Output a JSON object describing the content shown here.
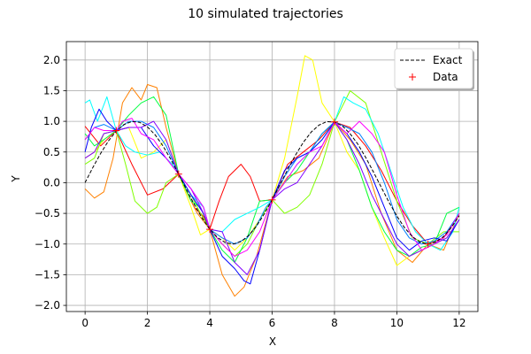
{
  "chart_data": {
    "type": "line",
    "title": "10 simulated trajectories",
    "xlabel": "X",
    "ylabel": "Y",
    "xlim": [
      -0.6,
      12.6
    ],
    "ylim": [
      -2.1,
      2.3
    ],
    "xticks": [
      0,
      2,
      4,
      6,
      8,
      10,
      12
    ],
    "yticks": [
      -2.0,
      -1.5,
      -1.0,
      -0.5,
      0.0,
      0.5,
      1.0,
      1.5,
      2.0
    ],
    "xtick_labels": [
      "0",
      "2",
      "4",
      "6",
      "8",
      "10",
      "12"
    ],
    "ytick_labels": [
      "−2.0",
      "−1.5",
      "−1.0",
      "−0.5",
      "0.0",
      "0.5",
      "1.0",
      "1.5",
      "2.0"
    ],
    "grid": true,
    "legend_position": "top-right",
    "legend": [
      {
        "label": "Exact",
        "style": "dashed-line",
        "color": "#000000"
      },
      {
        "label": "Data",
        "style": "plus-marker",
        "color": "#ff0000"
      }
    ],
    "exact": {
      "name": "Exact",
      "color": "#000000",
      "x": [
        0,
        0.25,
        0.5,
        0.75,
        1,
        1.25,
        1.5,
        1.75,
        2,
        2.25,
        2.5,
        2.75,
        3,
        3.25,
        3.5,
        3.75,
        4,
        4.25,
        4.5,
        4.75,
        5,
        5.25,
        5.5,
        5.75,
        6,
        6.25,
        6.5,
        6.75,
        7,
        7.25,
        7.5,
        7.75,
        8,
        8.25,
        8.5,
        8.75,
        9,
        9.25,
        9.5,
        9.75,
        10,
        10.25,
        10.5,
        10.75,
        11,
        11.25,
        11.5,
        11.75,
        12
      ],
      "y": [
        0,
        0.247,
        0.479,
        0.682,
        0.841,
        0.949,
        0.997,
        0.984,
        0.909,
        0.778,
        0.598,
        0.382,
        0.141,
        -0.108,
        -0.351,
        -0.572,
        -0.757,
        -0.895,
        -0.978,
        -0.999,
        -0.959,
        -0.859,
        -0.706,
        -0.508,
        -0.279,
        -0.033,
        0.215,
        0.45,
        0.657,
        0.823,
        0.938,
        0.994,
        0.989,
        0.925,
        0.798,
        0.626,
        0.412,
        0.174,
        -0.075,
        -0.32,
        -0.544,
        -0.736,
        -0.88,
        -0.97,
        -1.0,
        -0.967,
        -0.876,
        -0.728,
        -0.537
      ]
    },
    "data_points": {
      "name": "Data",
      "color": "#ff0000",
      "x": [
        1,
        3,
        4,
        6,
        8,
        11
      ],
      "y": [
        0.85,
        0.14,
        -0.76,
        -0.28,
        0.99,
        -1.0
      ]
    },
    "trajectories": [
      {
        "color": "#ff0000",
        "x": [
          0,
          0.5,
          1,
          1.5,
          2,
          2.5,
          3,
          3.5,
          3.8,
          4,
          4.3,
          4.6,
          5,
          5.3,
          5.6,
          6,
          6.5,
          7,
          7.5,
          8,
          8.5,
          9,
          9.5,
          10,
          10.5,
          11,
          11.5,
          12
        ],
        "y": [
          0.92,
          0.6,
          0.85,
          0.3,
          -0.2,
          -0.1,
          0.14,
          -0.4,
          -0.55,
          -0.76,
          -0.3,
          0.1,
          0.3,
          0.1,
          -0.3,
          -0.28,
          0.3,
          0.5,
          0.7,
          0.99,
          0.9,
          0.6,
          0.2,
          -0.3,
          -0.7,
          -1.0,
          -0.9,
          -0.5
        ]
      },
      {
        "color": "#ff8000",
        "x": [
          0,
          0.3,
          0.6,
          0.9,
          1.2,
          1.5,
          1.8,
          2,
          2.3,
          2.6,
          3,
          3.3,
          3.6,
          4,
          4.4,
          4.8,
          5.1,
          5.5,
          6,
          6.5,
          7,
          7.5,
          8,
          8.5,
          9,
          9.5,
          10,
          10.5,
          11,
          11.5,
          12
        ],
        "y": [
          -0.1,
          -0.25,
          -0.15,
          0.4,
          1.3,
          1.55,
          1.35,
          1.6,
          1.55,
          0.9,
          0.14,
          -0.2,
          -0.5,
          -0.76,
          -1.5,
          -1.85,
          -1.7,
          -1.2,
          -0.28,
          0.1,
          0.2,
          0.4,
          0.99,
          0.7,
          0.3,
          -0.5,
          -1.1,
          -1.3,
          -1.0,
          -1.1,
          -0.5
        ]
      },
      {
        "color": "#ffff00",
        "x": [
          0,
          0.3,
          0.6,
          1,
          1.4,
          1.8,
          2.2,
          2.6,
          3,
          3.4,
          3.7,
          4,
          4.4,
          4.8,
          5.2,
          5.6,
          6,
          6.4,
          6.8,
          7.05,
          7.3,
          7.6,
          8,
          8.4,
          8.8,
          9.2,
          9.6,
          10,
          10.4,
          10.8,
          11.2,
          11.6,
          12
        ],
        "y": [
          0.4,
          0.5,
          0.7,
          0.85,
          0.9,
          0.4,
          0.5,
          0.7,
          0.14,
          -0.4,
          -0.85,
          -0.76,
          -0.9,
          -1.1,
          -0.9,
          -0.6,
          -0.28,
          0.4,
          1.4,
          2.07,
          2.0,
          1.3,
          0.99,
          0.5,
          0.2,
          -0.4,
          -0.9,
          -1.35,
          -1.2,
          -1.1,
          -1.0,
          -0.9,
          -0.6
        ]
      },
      {
        "color": "#80ff00",
        "x": [
          0,
          0.3,
          0.6,
          1,
          1.3,
          1.6,
          2,
          2.3,
          2.6,
          3,
          3.4,
          3.7,
          4,
          4.4,
          4.8,
          5.2,
          5.6,
          6,
          6.4,
          6.8,
          7.2,
          7.6,
          8,
          8.5,
          9,
          9.5,
          10,
          10.5,
          11,
          11.5,
          12
        ],
        "y": [
          0.3,
          0.4,
          0.8,
          0.85,
          0.3,
          -0.3,
          -0.5,
          -0.4,
          0.0,
          0.14,
          -0.2,
          -0.5,
          -0.76,
          -1.0,
          -1.2,
          -1.0,
          -0.6,
          -0.28,
          -0.5,
          -0.4,
          -0.2,
          0.3,
          0.99,
          1.5,
          1.3,
          0.5,
          -0.3,
          -0.9,
          -1.0,
          -0.8,
          -0.8
        ]
      },
      {
        "color": "#00ff40",
        "x": [
          0,
          0.3,
          0.6,
          1,
          1.4,
          1.8,
          2.2,
          2.6,
          3,
          3.4,
          3.7,
          4,
          4.4,
          4.8,
          5.2,
          5.6,
          6,
          6.4,
          6.8,
          7.2,
          7.6,
          8,
          8.4,
          8.8,
          9.2,
          9.6,
          10,
          10.4,
          10.8,
          11.2,
          11.6,
          12
        ],
        "y": [
          0.8,
          0.6,
          0.7,
          0.85,
          1.1,
          1.3,
          1.4,
          1.1,
          0.14,
          -0.3,
          -0.4,
          -0.76,
          -1.1,
          -1.3,
          -0.9,
          -0.3,
          -0.28,
          0.0,
          0.2,
          0.5,
          0.8,
          0.99,
          0.7,
          0.2,
          -0.4,
          -0.8,
          -1.1,
          -1.2,
          -1.05,
          -1.0,
          -0.5,
          -0.4
        ]
      },
      {
        "color": "#00ffff",
        "x": [
          0,
          0.15,
          0.4,
          0.7,
          1,
          1.3,
          1.6,
          2,
          2.4,
          2.8,
          3,
          3.4,
          3.8,
          4,
          4.4,
          4.8,
          5.2,
          5.6,
          6,
          6.4,
          6.8,
          7.2,
          7.6,
          8,
          8.3,
          8.6,
          9,
          9.4,
          9.8,
          10.2,
          10.6,
          11,
          11.4,
          11.8,
          12
        ],
        "y": [
          1.3,
          1.35,
          1.0,
          1.4,
          0.85,
          0.6,
          0.5,
          0.45,
          0.5,
          0.3,
          0.14,
          -0.2,
          -0.4,
          -0.76,
          -0.8,
          -0.6,
          -0.5,
          -0.4,
          -0.28,
          0.0,
          0.3,
          0.5,
          0.7,
          0.99,
          1.4,
          1.3,
          1.2,
          0.8,
          0.2,
          -0.4,
          -0.8,
          -1.0,
          -1.1,
          -0.8,
          -0.4
        ]
      },
      {
        "color": "#0080ff",
        "x": [
          0,
          0.3,
          0.6,
          1,
          1.4,
          1.8,
          2.2,
          2.6,
          3,
          3.4,
          3.8,
          4,
          4.4,
          4.8,
          5.2,
          5.5,
          5.8,
          6,
          6.4,
          6.8,
          7.2,
          7.6,
          8,
          8.4,
          8.8,
          9.2,
          9.6,
          10,
          10.4,
          10.8,
          11.2,
          11.6,
          12
        ],
        "y": [
          0.7,
          0.9,
          0.95,
          0.85,
          1.0,
          1.0,
          0.9,
          0.6,
          0.14,
          -0.1,
          -0.4,
          -0.76,
          -0.9,
          -1.0,
          -0.9,
          -0.7,
          -0.4,
          -0.28,
          0.1,
          0.4,
          0.5,
          0.8,
          0.99,
          0.9,
          0.8,
          0.5,
          0.0,
          -0.6,
          -0.9,
          -1.0,
          -0.95,
          -0.8,
          -0.5
        ]
      },
      {
        "color": "#0000ff",
        "x": [
          0,
          0.2,
          0.45,
          0.7,
          1,
          1.4,
          1.8,
          2.2,
          2.6,
          3,
          3.4,
          3.8,
          4,
          4.4,
          4.8,
          5.1,
          5.3,
          5.6,
          6,
          6.4,
          6.8,
          7.2,
          7.6,
          8,
          8.4,
          8.8,
          9.2,
          9.6,
          10,
          10.4,
          10.8,
          11.2,
          11.6,
          12
        ],
        "y": [
          0.5,
          0.9,
          1.2,
          1.0,
          0.85,
          0.9,
          0.9,
          0.6,
          0.4,
          0.14,
          -0.2,
          -0.5,
          -0.76,
          -1.2,
          -1.4,
          -1.6,
          -1.65,
          -1.1,
          -0.28,
          0.2,
          0.4,
          0.5,
          0.7,
          0.99,
          0.8,
          0.5,
          0.1,
          -0.4,
          -0.9,
          -1.1,
          -0.95,
          -0.9,
          -0.95,
          -0.6
        ]
      },
      {
        "color": "#8000ff",
        "x": [
          0,
          0.3,
          0.6,
          1,
          1.4,
          1.8,
          2.2,
          2.6,
          3,
          3.4,
          3.8,
          4,
          4.4,
          4.8,
          5.2,
          5.6,
          6,
          6.4,
          6.8,
          7.2,
          7.6,
          8,
          8.4,
          8.8,
          9.2,
          9.6,
          10,
          10.4,
          10.8,
          11.2,
          11.6,
          12
        ],
        "y": [
          0.4,
          0.5,
          0.8,
          0.85,
          0.9,
          0.9,
          1.0,
          0.7,
          0.14,
          -0.1,
          -0.5,
          -0.76,
          -0.8,
          -1.3,
          -1.5,
          -1.1,
          -0.28,
          -0.1,
          0.0,
          0.3,
          0.6,
          0.99,
          0.7,
          0.3,
          -0.2,
          -0.6,
          -1.0,
          -1.2,
          -1.1,
          -1.0,
          -0.9,
          -0.6
        ]
      },
      {
        "color": "#ff00ff",
        "x": [
          0,
          0.3,
          0.6,
          1,
          1.2,
          1.5,
          1.8,
          2.2,
          2.6,
          3,
          3.4,
          3.8,
          4,
          4.4,
          4.8,
          5.2,
          5.6,
          6,
          6.4,
          6.8,
          7.2,
          7.6,
          8,
          8.4,
          8.8,
          9.2,
          9.6,
          10,
          10.4,
          10.8,
          11.2,
          11.6,
          12
        ],
        "y": [
          0.7,
          0.9,
          0.85,
          0.85,
          1.0,
          1.05,
          0.8,
          0.7,
          0.4,
          0.14,
          -0.1,
          -0.4,
          -0.76,
          -1.0,
          -1.2,
          -1.1,
          -0.8,
          -0.28,
          0.0,
          0.3,
          0.5,
          0.6,
          0.99,
          0.8,
          1.0,
          0.8,
          0.5,
          -0.2,
          -0.8,
          -1.1,
          -1.0,
          -0.85,
          -0.5
        ]
      }
    ]
  }
}
